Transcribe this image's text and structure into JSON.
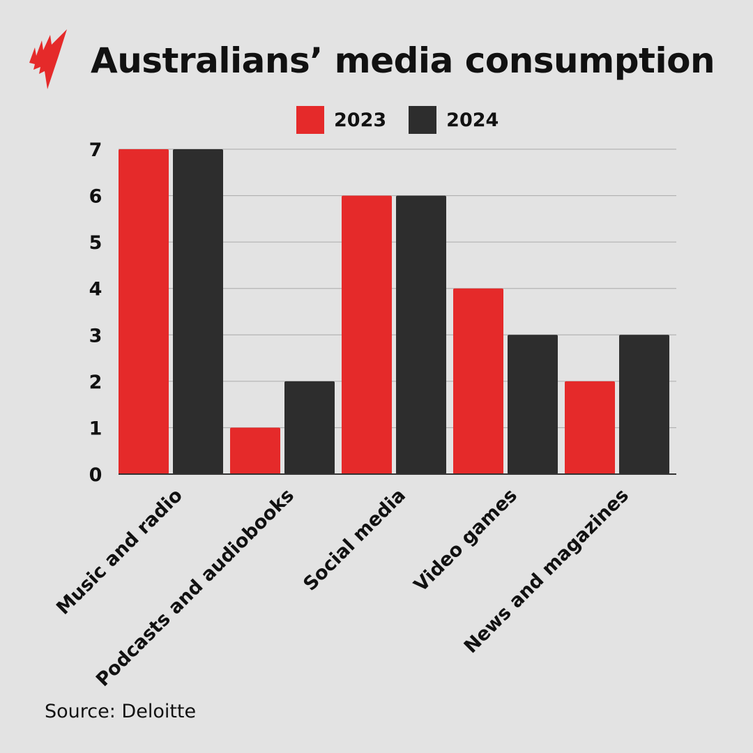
{
  "title": "Australians’ media consumption",
  "source": "Source: Deloitte",
  "logo": {
    "name": "sbs-logo",
    "color": "#e52a2a"
  },
  "chart_data": {
    "type": "bar",
    "title": "Australians’ media consumption",
    "categories": [
      "Music and radio",
      "Podcasts and audiobooks",
      "Social media",
      "Video games",
      "News and magazines"
    ],
    "series": [
      {
        "name": "2023",
        "color": "#e52a2a",
        "values": [
          7,
          1,
          6,
          4,
          2
        ]
      },
      {
        "name": "2024",
        "color": "#2d2d2d",
        "values": [
          7,
          2,
          6,
          3,
          3
        ]
      }
    ],
    "ylim": [
      0,
      7
    ],
    "yticks": [
      "0",
      "1",
      "2",
      "3",
      "4",
      "5",
      "6",
      "7"
    ],
    "grid": true,
    "legend": "top",
    "xlabel": "",
    "ylabel": ""
  }
}
